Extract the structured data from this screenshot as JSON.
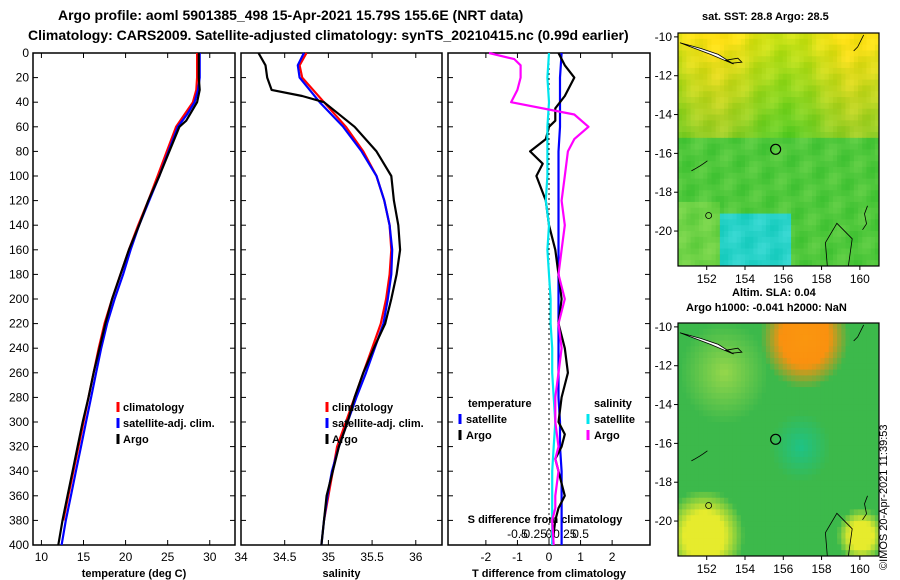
{
  "title_line1": "Argo profile: aoml 5901385_498 15-Apr-2021 15.79S 155.6E (NRT data)",
  "title_line2": "Climatology: CARS2009. Satellite-adjusted climatology: synTS_20210415.nc (0.99d earlier)",
  "credit": "©IMOS 20-Apr-2021 11:39:53",
  "chart_data": [
    {
      "name": "temperature",
      "type": "line",
      "xlabel": "temperature (deg C)",
      "xlim": [
        9,
        33
      ],
      "ylim": [
        400,
        0
      ],
      "xticks": [
        10,
        15,
        20,
        25,
        30
      ],
      "yticks": [
        0,
        20,
        40,
        60,
        80,
        100,
        120,
        140,
        160,
        180,
        200,
        220,
        240,
        260,
        280,
        300,
        320,
        340,
        360,
        380,
        400
      ],
      "legend": [
        "climatology",
        "satellite-adj. clim.",
        "Argo"
      ],
      "series": [
        {
          "name": "climatology",
          "color": "#ff0000",
          "x": [
            28.5,
            28.5,
            28.4,
            28.0,
            27.0,
            26.0,
            24.9,
            23.8,
            22.7,
            21.5,
            20.4,
            19.4,
            18.4,
            17.5,
            16.8,
            16.2,
            15.6,
            15.0,
            14.4,
            13.8,
            13.2,
            12.6
          ],
          "y": [
            0,
            20,
            30,
            40,
            50,
            60,
            80,
            100,
            120,
            140,
            160,
            180,
            200,
            220,
            240,
            260,
            280,
            300,
            320,
            340,
            360,
            380
          ]
        },
        {
          "name": "satellite-adj. clim.",
          "color": "#0000ff",
          "x": [
            28.8,
            28.8,
            28.6,
            28.2,
            27.3,
            26.2,
            25.1,
            24.0,
            22.8,
            21.6,
            20.6,
            19.7,
            18.7,
            17.8,
            17.1,
            16.5,
            15.9,
            15.3,
            14.7,
            14.1,
            13.5,
            12.9,
            12.4
          ],
          "y": [
            0,
            20,
            30,
            40,
            50,
            60,
            80,
            100,
            120,
            140,
            160,
            180,
            200,
            220,
            240,
            260,
            280,
            300,
            320,
            340,
            360,
            380,
            400
          ]
        },
        {
          "name": "Argo",
          "color": "#000000",
          "x": [
            28.7,
            28.7,
            28.8,
            28.5,
            27.2,
            26.4,
            25.2,
            24.0,
            22.7,
            21.6,
            20.4,
            19.4,
            18.4,
            17.6,
            16.9,
            16.2,
            15.6,
            14.9,
            14.3,
            13.7,
            13.1,
            12.5,
            12.0
          ],
          "y": [
            0,
            20,
            30,
            40,
            55,
            60,
            80,
            100,
            120,
            140,
            160,
            180,
            200,
            220,
            240,
            260,
            280,
            300,
            320,
            340,
            360,
            380,
            400
          ]
        }
      ]
    },
    {
      "name": "salinity",
      "type": "line",
      "xlabel": "salinity",
      "xlim": [
        34,
        36.3
      ],
      "ylim": [
        400,
        0
      ],
      "xticks": [
        34,
        34.5,
        35,
        35.5,
        36
      ],
      "legend": [
        "climatology",
        "satellite-adj. clim.",
        "Argo"
      ],
      "series": [
        {
          "name": "climatology",
          "color": "#ff0000",
          "x": [
            34.75,
            34.67,
            34.7,
            34.95,
            35.2,
            35.4,
            35.55,
            35.64,
            35.7,
            35.72,
            35.7,
            35.66,
            35.6,
            35.5,
            35.4,
            35.3,
            35.2,
            35.1,
            35.05,
            35.0,
            34.95
          ],
          "y": [
            0,
            10,
            20,
            40,
            60,
            80,
            100,
            120,
            140,
            160,
            180,
            200,
            220,
            240,
            260,
            280,
            300,
            320,
            340,
            360,
            380
          ]
        },
        {
          "name": "satellite-adj. clim.",
          "color": "#0000ff",
          "x": [
            34.72,
            34.65,
            34.67,
            34.9,
            35.17,
            35.38,
            35.55,
            35.64,
            35.7,
            35.73,
            35.72,
            35.68,
            35.63,
            35.53,
            35.43,
            35.32,
            35.22,
            35.12,
            35.04,
            34.99,
            34.95,
            34.92
          ],
          "y": [
            0,
            10,
            20,
            40,
            60,
            80,
            100,
            120,
            140,
            160,
            180,
            200,
            220,
            240,
            260,
            280,
            300,
            320,
            340,
            360,
            380,
            400
          ]
        },
        {
          "name": "Argo",
          "color": "#000000",
          "x": [
            34.2,
            34.28,
            34.3,
            34.35,
            34.7,
            34.95,
            35.3,
            35.55,
            35.72,
            35.75,
            35.8,
            35.82,
            35.78,
            35.72,
            35.65,
            35.52,
            35.4,
            35.3,
            35.22,
            35.12,
            35.05,
            34.98,
            34.92
          ],
          "y": [
            0,
            10,
            20,
            30,
            35,
            40,
            60,
            80,
            100,
            120,
            140,
            160,
            180,
            200,
            220,
            240,
            260,
            280,
            300,
            320,
            340,
            360,
            400
          ]
        }
      ]
    },
    {
      "name": "differences",
      "type": "line",
      "xlabel": "T difference from climatology",
      "xlabel_top": "S difference from climatology",
      "xlim": [
        -3.2,
        3.2
      ],
      "ylim": [
        400,
        0
      ],
      "xticks": [
        -2,
        -1,
        0,
        1,
        2
      ],
      "xtick_labels": [
        "-2",
        "-1",
        "0",
        "1",
        "2"
      ],
      "top_ticks": [
        -1.0,
        -0.5,
        0,
        0.5,
        1.0
      ],
      "top_tick_labels": [
        "-0.5",
        "-0.25",
        "0",
        "0.25",
        "0.5"
      ],
      "legend_temperature": {
        "title": "temperature",
        "items": [
          "satellite",
          "Argo"
        ]
      },
      "legend_salinity": {
        "title": "salinity",
        "items": [
          "satellite",
          "Argo"
        ]
      },
      "series": [
        {
          "name": "T satellite",
          "color": "#0000ff",
          "x": [
            0.4,
            0.35,
            0.35,
            0.35,
            0.3,
            0.3,
            0.3,
            0.3,
            0.3,
            0.3,
            0.3,
            0.3,
            0.3,
            0.3,
            0.3,
            0.35,
            0.35,
            0.4,
            0.4,
            0.4,
            0.4
          ],
          "y": [
            0,
            20,
            40,
            60,
            80,
            100,
            120,
            140,
            160,
            180,
            200,
            220,
            240,
            260,
            280,
            300,
            320,
            340,
            360,
            380,
            400
          ]
        },
        {
          "name": "T Argo",
          "color": "#000000",
          "x": [
            0.3,
            0.5,
            0.8,
            0.5,
            0.2,
            0.2,
            0.0,
            -0.1,
            -0.6,
            -0.2,
            -0.4,
            -0.1,
            0.0,
            0.2,
            0.3,
            0.4,
            0.3,
            0.5,
            0.6,
            0.4,
            0.3,
            0.5,
            0.4,
            0.2,
            0.3,
            0.4,
            0.5,
            0.3,
            0.2,
            0.1
          ],
          "y": [
            0,
            10,
            20,
            35,
            45,
            55,
            60,
            70,
            80,
            90,
            100,
            120,
            140,
            160,
            180,
            200,
            220,
            240,
            260,
            280,
            300,
            310,
            320,
            330,
            340,
            350,
            360,
            370,
            380,
            400
          ]
        },
        {
          "name": "S satellite",
          "color": "#00e5ee",
          "x": [
            0.0,
            -0.05,
            0.0,
            -0.05,
            -0.05,
            -0.05,
            -0.1,
            0.0,
            -0.05,
            0.0,
            0.05,
            0.05,
            0.1,
            0.1,
            0.15,
            0.2,
            0.15,
            0.1,
            0.1,
            0.1,
            0.1
          ],
          "y": [
            0,
            20,
            40,
            60,
            80,
            100,
            120,
            140,
            160,
            180,
            200,
            220,
            240,
            260,
            280,
            300,
            320,
            340,
            360,
            380,
            400
          ]
        },
        {
          "name": "S Argo",
          "color": "#ff00ff",
          "x": [
            -1.9,
            -1.1,
            -0.9,
            -0.9,
            -1.0,
            -1.2,
            0.8,
            1.25,
            0.8,
            0.6,
            0.5,
            0.4,
            0.5,
            0.4,
            0.3,
            0.5,
            0.3,
            0.4,
            0.3,
            0.2,
            0.2,
            0.3,
            0.2,
            0.3,
            0.2,
            0.2,
            0.1,
            0.15
          ],
          "y": [
            0,
            5,
            10,
            20,
            30,
            40,
            50,
            60,
            70,
            80,
            100,
            120,
            140,
            160,
            180,
            200,
            220,
            240,
            260,
            280,
            300,
            320,
            330,
            340,
            360,
            370,
            380,
            400
          ]
        }
      ]
    },
    {
      "name": "sst_map",
      "type": "heatmap",
      "title": "sat. SST: 28.8 Argo: 28.5",
      "xlim": [
        150.5,
        161
      ],
      "ylim": [
        -21.8,
        -9.8
      ],
      "xticks": [
        152,
        154,
        156,
        158,
        160
      ],
      "yticks": [
        -10,
        -12,
        -14,
        -16,
        -18,
        -20
      ],
      "argo_position": {
        "lon": 155.6,
        "lat": -15.79
      }
    },
    {
      "name": "sla_map",
      "type": "heatmap",
      "title_line1": "Altim. SLA: 0.04",
      "title_line2": "Argo h1000: -0.041 h2000: NaN",
      "xlim": [
        150.5,
        161
      ],
      "ylim": [
        -21.8,
        -9.8
      ],
      "xticks": [
        152,
        154,
        156,
        158,
        160
      ],
      "yticks": [
        -10,
        -12,
        -14,
        -16,
        -18,
        -20
      ],
      "argo_position": {
        "lon": 155.6,
        "lat": -15.79
      }
    }
  ]
}
